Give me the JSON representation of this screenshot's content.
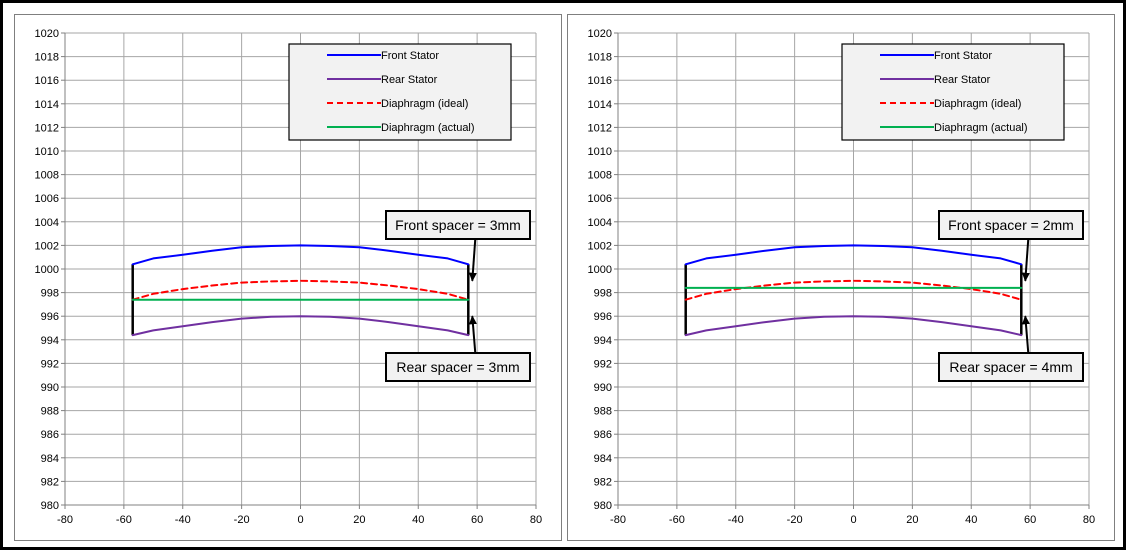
{
  "chart_data": [
    {
      "type": "line",
      "xlim": [
        -80,
        80
      ],
      "ylim": [
        980,
        1020
      ],
      "x_ticks": [
        "-80",
        "-60",
        "-40",
        "-20",
        "0",
        "20",
        "40",
        "60",
        "80"
      ],
      "y_ticks": [
        "980",
        "982",
        "984",
        "986",
        "988",
        "990",
        "992",
        "994",
        "996",
        "998",
        "1000",
        "1002",
        "1004",
        "1006",
        "1008",
        "1010",
        "1012",
        "1014",
        "1016",
        "1018",
        "1020"
      ],
      "grid": true,
      "legend_position": "top-right",
      "series": [
        {
          "name": "Front Stator",
          "color": "#0000ff",
          "dash": "solid",
          "x": [
            -57,
            -50,
            -40,
            -30,
            -20,
            -10,
            0,
            10,
            20,
            30,
            40,
            50,
            57
          ],
          "y": [
            1000.4,
            1000.9,
            1001.2,
            1001.55,
            1001.85,
            1001.95,
            1002.0,
            1001.95,
            1001.85,
            1001.55,
            1001.2,
            1000.9,
            1000.4
          ]
        },
        {
          "name": "Rear Stator",
          "color": "#7030a0",
          "dash": "solid",
          "x": [
            -57,
            -50,
            -40,
            -30,
            -20,
            -10,
            0,
            10,
            20,
            30,
            40,
            50,
            57
          ],
          "y": [
            994.4,
            994.8,
            995.15,
            995.5,
            995.8,
            995.95,
            996.0,
            995.95,
            995.8,
            995.5,
            995.15,
            994.8,
            994.4
          ]
        },
        {
          "name": "Diaphragm (ideal)",
          "color": "#ff0000",
          "dash": "dashed",
          "x": [
            -57,
            -50,
            -40,
            -30,
            -20,
            -10,
            0,
            10,
            20,
            30,
            40,
            50,
            57
          ],
          "y": [
            997.4,
            997.9,
            998.3,
            998.6,
            998.85,
            998.95,
            999.0,
            998.95,
            998.85,
            998.6,
            998.3,
            997.9,
            997.4
          ]
        },
        {
          "name": "Diaphragm (actual)",
          "color": "#00b050",
          "dash": "solid",
          "x": [
            -57,
            57
          ],
          "y": [
            997.4,
            997.4
          ]
        }
      ],
      "end_lines": [
        {
          "x": -57,
          "y1": 994.4,
          "y2": 1000.4
        },
        {
          "x": 57,
          "y1": 994.4,
          "y2": 1000.4
        }
      ],
      "annotations": [
        {
          "text": "Front spacer = 3mm",
          "arrow_to": [
            57,
            999.0
          ]
        },
        {
          "text": "Rear spacer = 3mm",
          "arrow_to": [
            57,
            996.0
          ]
        }
      ]
    },
    {
      "type": "line",
      "xlim": [
        -80,
        80
      ],
      "ylim": [
        980,
        1020
      ],
      "x_ticks": [
        "-80",
        "-60",
        "-40",
        "-20",
        "0",
        "20",
        "40",
        "60",
        "80"
      ],
      "y_ticks": [
        "980",
        "982",
        "984",
        "986",
        "988",
        "990",
        "992",
        "994",
        "996",
        "998",
        "1000",
        "1002",
        "1004",
        "1006",
        "1008",
        "1010",
        "1012",
        "1014",
        "1016",
        "1018",
        "1020"
      ],
      "grid": true,
      "legend_position": "top-right",
      "series": [
        {
          "name": "Front Stator",
          "color": "#0000ff",
          "dash": "solid",
          "x": [
            -57,
            -50,
            -40,
            -30,
            -20,
            -10,
            0,
            10,
            20,
            30,
            40,
            50,
            57
          ],
          "y": [
            1000.4,
            1000.9,
            1001.2,
            1001.55,
            1001.85,
            1001.95,
            1002.0,
            1001.95,
            1001.85,
            1001.55,
            1001.2,
            1000.9,
            1000.4
          ]
        },
        {
          "name": "Rear Stator",
          "color": "#7030a0",
          "dash": "solid",
          "x": [
            -57,
            -50,
            -40,
            -30,
            -20,
            -10,
            0,
            10,
            20,
            30,
            40,
            50,
            57
          ],
          "y": [
            994.4,
            994.8,
            995.15,
            995.5,
            995.8,
            995.95,
            996.0,
            995.95,
            995.8,
            995.5,
            995.15,
            994.8,
            994.4
          ]
        },
        {
          "name": "Diaphragm (ideal)",
          "color": "#ff0000",
          "dash": "dashed",
          "x": [
            -57,
            -50,
            -40,
            -30,
            -20,
            -10,
            0,
            10,
            20,
            30,
            40,
            50,
            57
          ],
          "y": [
            997.4,
            997.9,
            998.3,
            998.6,
            998.85,
            998.95,
            999.0,
            998.95,
            998.85,
            998.6,
            998.3,
            997.9,
            997.4
          ]
        },
        {
          "name": "Diaphragm (actual)",
          "color": "#00b050",
          "dash": "solid",
          "x": [
            -57,
            57
          ],
          "y": [
            998.4,
            998.4
          ]
        }
      ],
      "end_lines": [
        {
          "x": -57,
          "y1": 994.4,
          "y2": 1000.4
        },
        {
          "x": 57,
          "y1": 994.4,
          "y2": 1000.4
        }
      ],
      "annotations": [
        {
          "text": "Front spacer = 2mm",
          "arrow_to": [
            57,
            999.0
          ]
        },
        {
          "text": "Rear spacer = 4mm",
          "arrow_to": [
            57,
            996.0
          ]
        }
      ]
    }
  ]
}
